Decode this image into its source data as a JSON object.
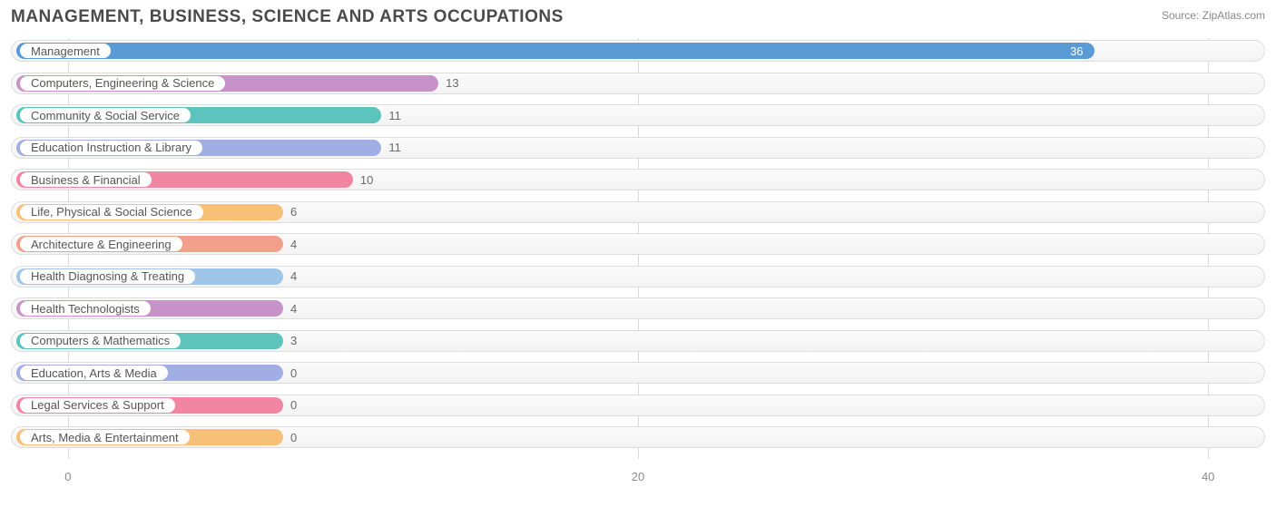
{
  "header": {
    "title": "MANAGEMENT, BUSINESS, SCIENCE AND ARTS OCCUPATIONS",
    "source_label": "Source:",
    "source_name": "ZipAtlas.com"
  },
  "chart": {
    "type": "bar-horizontal",
    "background_color": "#ffffff",
    "grid_color": "#d9d9d9",
    "track_border": "#dcdcdc",
    "text_color": "#555555",
    "value_color": "#6a6a6a",
    "x_min": -2,
    "x_max": 42,
    "x_ticks": [
      0,
      20,
      40
    ],
    "label_start_offset": 300,
    "categories": [
      {
        "label": "Management",
        "value": 36,
        "color": "#5a9bd5",
        "value_inside": true
      },
      {
        "label": "Computers, Engineering & Science",
        "value": 13,
        "color": "#c792c8",
        "value_inside": false
      },
      {
        "label": "Community & Social Service",
        "value": 11,
        "color": "#5cc4bd",
        "value_inside": false
      },
      {
        "label": "Education Instruction & Library",
        "value": 11,
        "color": "#a1aee6",
        "value_inside": false
      },
      {
        "label": "Business & Financial",
        "value": 10,
        "color": "#f285a1",
        "value_inside": false
      },
      {
        "label": "Life, Physical & Social Science",
        "value": 6,
        "color": "#f6c078",
        "value_inside": false
      },
      {
        "label": "Architecture & Engineering",
        "value": 4,
        "color": "#f2a08c",
        "value_inside": false
      },
      {
        "label": "Health Diagnosing & Treating",
        "value": 4,
        "color": "#9fc5e8",
        "value_inside": false
      },
      {
        "label": "Health Technologists",
        "value": 4,
        "color": "#c792c8",
        "value_inside": false
      },
      {
        "label": "Computers & Mathematics",
        "value": 3,
        "color": "#5cc4bd",
        "value_inside": false
      },
      {
        "label": "Education, Arts & Media",
        "value": 0,
        "color": "#a1aee6",
        "value_inside": false
      },
      {
        "label": "Legal Services & Support",
        "value": 0,
        "color": "#f285a1",
        "value_inside": false
      },
      {
        "label": "Arts, Media & Entertainment",
        "value": 0,
        "color": "#f6c078",
        "value_inside": false
      }
    ]
  }
}
